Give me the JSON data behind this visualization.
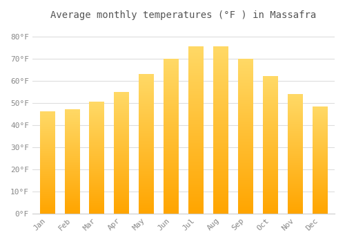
{
  "title": "Average monthly temperatures (°F ) in Massafra",
  "months": [
    "Jan",
    "Feb",
    "Mar",
    "Apr",
    "May",
    "Jun",
    "Jul",
    "Aug",
    "Sep",
    "Oct",
    "Nov",
    "Dec"
  ],
  "values": [
    46,
    47,
    50.5,
    55,
    63,
    70,
    75.5,
    75.5,
    70,
    62,
    54,
    48.5
  ],
  "bar_color_top": "#FFD966",
  "bar_color_bottom": "#FFA500",
  "background_color": "#FFFFFF",
  "grid_color": "#DDDDDD",
  "text_color": "#888888",
  "ylim": [
    0,
    85
  ],
  "yticks": [
    0,
    10,
    20,
    30,
    40,
    50,
    60,
    70,
    80
  ],
  "ytick_labels": [
    "0°F",
    "10°F",
    "20°F",
    "30°F",
    "40°F",
    "50°F",
    "60°F",
    "70°F",
    "80°F"
  ],
  "title_fontsize": 10,
  "tick_fontsize": 8
}
